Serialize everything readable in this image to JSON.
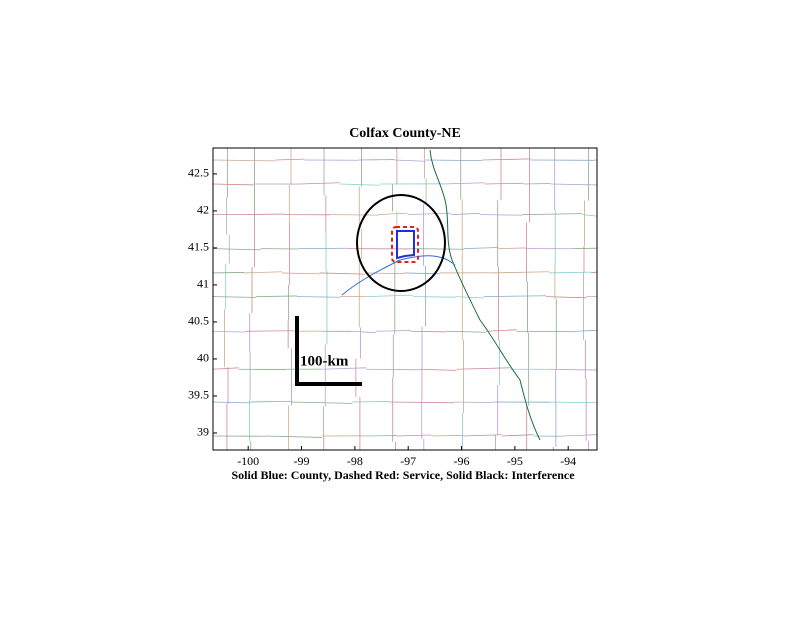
{
  "chart_data": {
    "type": "map",
    "title": "Colfax County-NE",
    "xlabel": "Solid Blue: County, Dashed Red: Service, Solid Black: Interference",
    "scale_label": "100-km",
    "xlim": [
      -100.66,
      -93.46
    ],
    "ylim": [
      38.77,
      42.85
    ],
    "xticks": [
      -100,
      -99,
      -98,
      -97,
      -96,
      -95,
      -94
    ],
    "yticks": [
      39,
      39.5,
      40,
      40.5,
      41,
      41.5,
      42,
      42.5
    ]
  }
}
